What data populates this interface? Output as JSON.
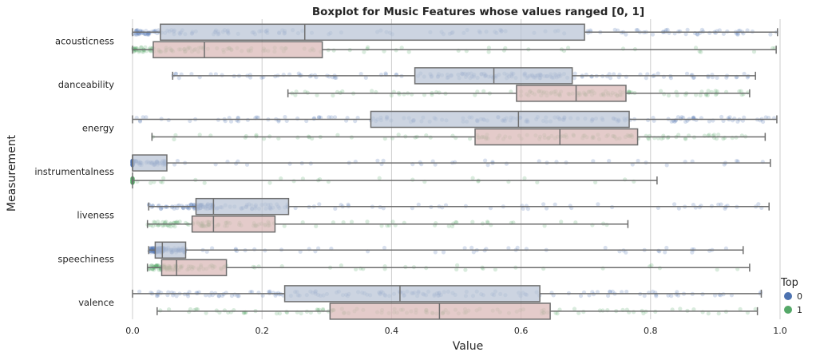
{
  "chart_data": {
    "type": "boxplot",
    "title": "Boxplot for Music Features whose values ranged [0, 1]",
    "xlabel": "Value",
    "ylabel": "Measurement",
    "xlim": [
      0,
      1
    ],
    "x_ticks": [
      "0.0",
      "0.2",
      "0.4",
      "0.6",
      "0.8",
      "1.0"
    ],
    "grid": "vertical",
    "legend": {
      "title": "Top",
      "placement": "bottom-right",
      "entries": [
        {
          "label": "0",
          "color": "#4c72b0"
        },
        {
          "label": "1",
          "color": "#55a868"
        }
      ]
    },
    "box_colors": {
      "0": "#b9c4d6",
      "1": "#d9b7b5"
    },
    "point_colors": {
      "0": "#4c72b0",
      "1": "#55a868"
    },
    "categories": [
      "acousticness",
      "danceability",
      "energy",
      "instrumentalness",
      "liveness",
      "speechiness",
      "valence"
    ],
    "series": [
      {
        "name": "0",
        "boxes": [
          {
            "whislo": 0.0,
            "q1": 0.043,
            "med": 0.266,
            "q3": 0.698,
            "whishi": 0.996
          },
          {
            "whislo": 0.062,
            "q1": 0.436,
            "med": 0.558,
            "q3": 0.679,
            "whishi": 0.962
          },
          {
            "whislo": 0.0,
            "q1": 0.368,
            "med": 0.596,
            "q3": 0.767,
            "whishi": 0.995
          },
          {
            "whislo": 0.0,
            "q1": 0.0,
            "med": 0.0,
            "q3": 0.053,
            "whishi": 0.985
          },
          {
            "whislo": 0.025,
            "q1": 0.098,
            "med": 0.125,
            "q3": 0.241,
            "whishi": 0.983
          },
          {
            "whislo": 0.025,
            "q1": 0.035,
            "med": 0.046,
            "q3": 0.082,
            "whishi": 0.943
          },
          {
            "whislo": 0.0,
            "q1": 0.235,
            "med": 0.413,
            "q3": 0.629,
            "whishi": 0.971
          }
        ]
      },
      {
        "name": "1",
        "boxes": [
          {
            "whislo": 0.0,
            "q1": 0.032,
            "med": 0.111,
            "q3": 0.293,
            "whishi": 0.994
          },
          {
            "whislo": 0.24,
            "q1": 0.593,
            "med": 0.685,
            "q3": 0.762,
            "whishi": 0.953
          },
          {
            "whislo": 0.03,
            "q1": 0.529,
            "med": 0.66,
            "q3": 0.78,
            "whishi": 0.977
          },
          {
            "whislo": 0.0,
            "q1": 0.0,
            "med": 0.0,
            "q3": 0.0,
            "whishi": 0.81
          },
          {
            "whislo": 0.023,
            "q1": 0.092,
            "med": 0.125,
            "q3": 0.22,
            "whishi": 0.765
          },
          {
            "whislo": 0.023,
            "q1": 0.045,
            "med": 0.068,
            "q3": 0.145,
            "whishi": 0.953
          },
          {
            "whislo": 0.038,
            "q1": 0.305,
            "med": 0.474,
            "q3": 0.645,
            "whishi": 0.965
          }
        ]
      }
    ]
  }
}
